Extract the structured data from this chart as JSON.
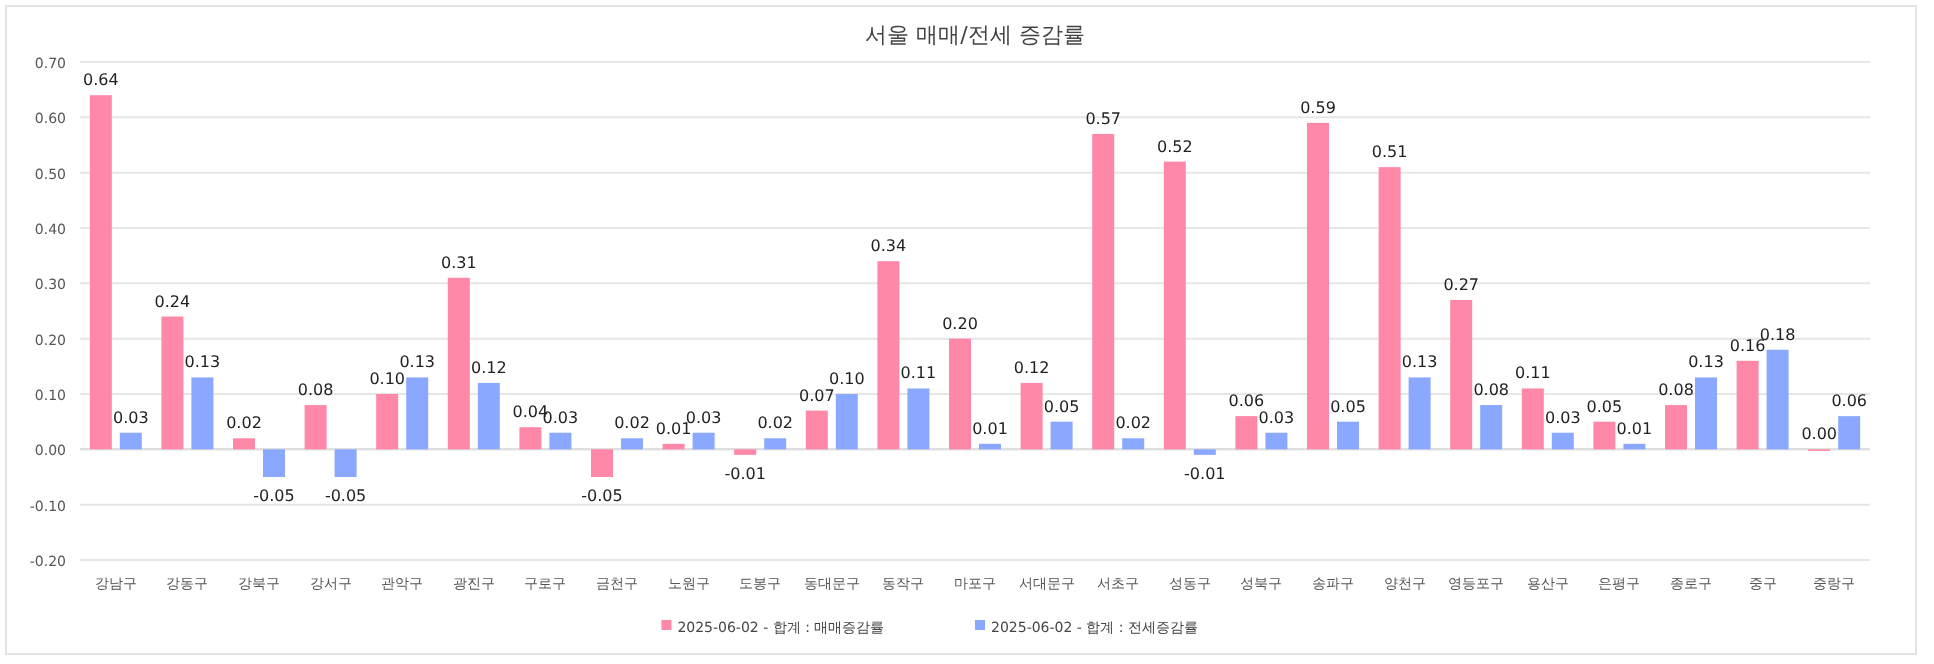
{
  "chart_data": {
    "type": "bar",
    "title": "서울 매매/전세 증감률",
    "categories": [
      "강남구",
      "강동구",
      "강북구",
      "강서구",
      "관악구",
      "광진구",
      "구로구",
      "금천구",
      "노원구",
      "도봉구",
      "동대문구",
      "동작구",
      "마포구",
      "서대문구",
      "서초구",
      "성동구",
      "성북구",
      "송파구",
      "양천구",
      "영등포구",
      "용산구",
      "은평구",
      "종로구",
      "중구",
      "중랑구"
    ],
    "series": [
      {
        "name": "2025-06-02 - 합계 : 매매증감률",
        "color": "#ff88a8",
        "values": [
          0.64,
          0.24,
          0.02,
          0.08,
          0.1,
          0.31,
          0.04,
          -0.05,
          0.01,
          -0.01,
          0.07,
          0.34,
          0.2,
          0.12,
          0.57,
          0.52,
          0.06,
          0.59,
          0.51,
          0.27,
          0.11,
          0.05,
          0.08,
          0.16,
          0.0
        ],
        "value_labels": [
          "0.64",
          "0.24",
          "0.02",
          "0.08",
          "0.10",
          "0.31",
          "0.04",
          "-0.05",
          "0.01",
          "-0.01",
          "0.07",
          "0.34",
          "0.20",
          "0.12",
          "0.57",
          "0.52",
          "0.06",
          "0.59",
          "0.51",
          "0.27",
          "0.11",
          "0.05",
          "0.08",
          "0.16",
          "0.00"
        ]
      },
      {
        "name": "2025-06-02 - 합계 : 전세증감률",
        "color": "#8aa8ff",
        "values": [
          0.03,
          0.13,
          -0.05,
          -0.05,
          0.13,
          0.12,
          0.03,
          0.02,
          0.03,
          0.02,
          0.1,
          0.11,
          0.01,
          0.05,
          0.02,
          -0.01,
          0.03,
          0.05,
          0.13,
          0.08,
          0.03,
          0.01,
          0.13,
          0.18,
          0.06
        ],
        "value_labels": [
          "0.03",
          "0.13",
          "-0.05",
          "-0.05",
          "0.13",
          "0.12",
          "0.03",
          "0.02",
          "0.03",
          "0.02",
          "0.10",
          "0.11",
          "0.01",
          "0.05",
          "0.02",
          "-0.01",
          "0.03",
          "0.05",
          "0.13",
          "0.08",
          "0.03",
          "0.01",
          "0.13",
          "0.18",
          "0.06"
        ]
      }
    ],
    "ylim": [
      -0.2,
      0.7
    ],
    "yticks": [
      {
        "value": -0.2,
        "label": "-0.20"
      },
      {
        "value": -0.1,
        "label": "-0.10"
      },
      {
        "value": 0,
        "label": "0.00"
      },
      {
        "value": 0.1,
        "label": "0.10"
      },
      {
        "value": 0.2,
        "label": "0.20"
      },
      {
        "value": 0.3,
        "label": "0.30"
      },
      {
        "value": 0.4,
        "label": "0.40"
      },
      {
        "value": 0.5,
        "label": "0.50"
      },
      {
        "value": 0.6,
        "label": "0.60"
      },
      {
        "value": 0.7,
        "label": "0.70"
      }
    ],
    "grid": "y",
    "legend": "bottom"
  }
}
